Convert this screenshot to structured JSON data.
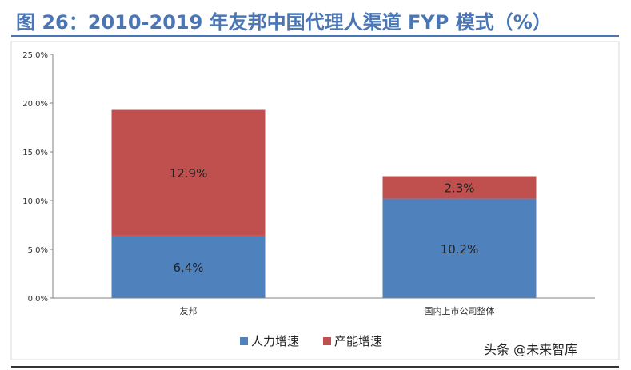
{
  "figure": {
    "title": "图 26：2010-2019 年友邦中国代理人渠道 FYP 模式（%）"
  },
  "watermark": "头条 @未来智库",
  "chart_data": {
    "type": "bar",
    "stacked": true,
    "title": "",
    "xlabel": "",
    "ylabel": "",
    "categories": [
      "友邦",
      "国内上市公司整体"
    ],
    "series": [
      {
        "name": "人力增速",
        "values": [
          6.4,
          10.2
        ],
        "labels": [
          "6.4%",
          "10.2%"
        ],
        "color": "#4f81bd"
      },
      {
        "name": "产能增速",
        "values": [
          12.9,
          2.3
        ],
        "labels": [
          "12.9%",
          "2.3%"
        ],
        "color": "#c0504d"
      }
    ],
    "ylim": [
      0,
      25
    ],
    "yticks": [
      0,
      5,
      10,
      15,
      20,
      25
    ],
    "ytick_labels": [
      "0.0%",
      "5.0%",
      "10.0%",
      "15.0%",
      "20.0%",
      "25.0%"
    ],
    "grid": false,
    "legend_position": "bottom"
  }
}
